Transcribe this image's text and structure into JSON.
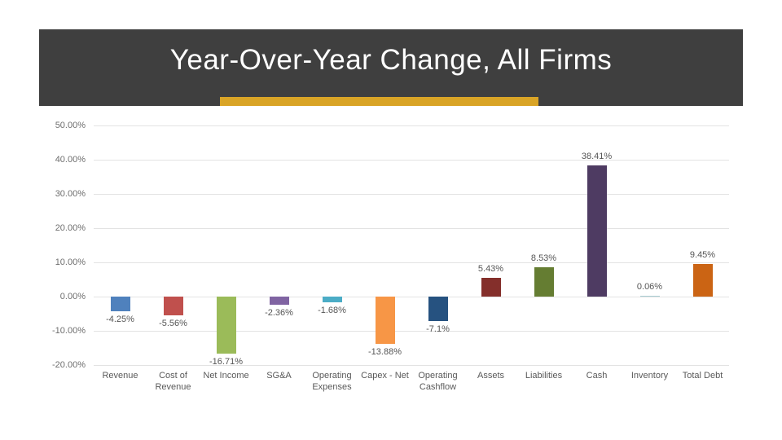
{
  "header": {
    "title": "Year-Over-Year Change, All Firms",
    "band_color": "#3f3f3f",
    "accent_bar_color": "#d9a426",
    "title_color": "#ffffff"
  },
  "chart_data": {
    "type": "bar",
    "title": "Year-Over-Year Change, All Firms",
    "categories": [
      "Revenue",
      "Cost of Revenue",
      "Net Income",
      "SG&A",
      "Operating Expenses",
      "Capex - Net",
      "Operating Cashflow",
      "Assets",
      "Liabilities",
      "Cash",
      "Inventory",
      "Total Debt"
    ],
    "values": [
      -4.25,
      -5.56,
      -16.71,
      -2.36,
      -1.68,
      -13.88,
      -7.1,
      5.43,
      8.53,
      38.41,
      0.06,
      9.45
    ],
    "data_labels": [
      "-4.25%",
      "-5.56%",
      "-16.71%",
      "-2.36%",
      "-1.68%",
      "-13.88%",
      "-7.1%",
      "5.43%",
      "8.53%",
      "38.41%",
      "0.06%",
      "9.45%"
    ],
    "bar_colors": [
      "#4f81bd",
      "#c0504d",
      "#9bbb59",
      "#8064a2",
      "#4bacc6",
      "#f79646",
      "#265280",
      "#842f2b",
      "#657d32",
      "#4e3b62",
      "#a9cdd3",
      "#cb6414"
    ],
    "xlabel": "",
    "ylabel": "",
    "ylim": [
      -20,
      50
    ],
    "ytick_interval": 10,
    "ytick_labels": [
      "50.00%",
      "40.00%",
      "30.00%",
      "20.00%",
      "10.00%",
      "0.00%",
      "-10.00%",
      "-20.00%"
    ],
    "grid": true,
    "legend": false
  }
}
